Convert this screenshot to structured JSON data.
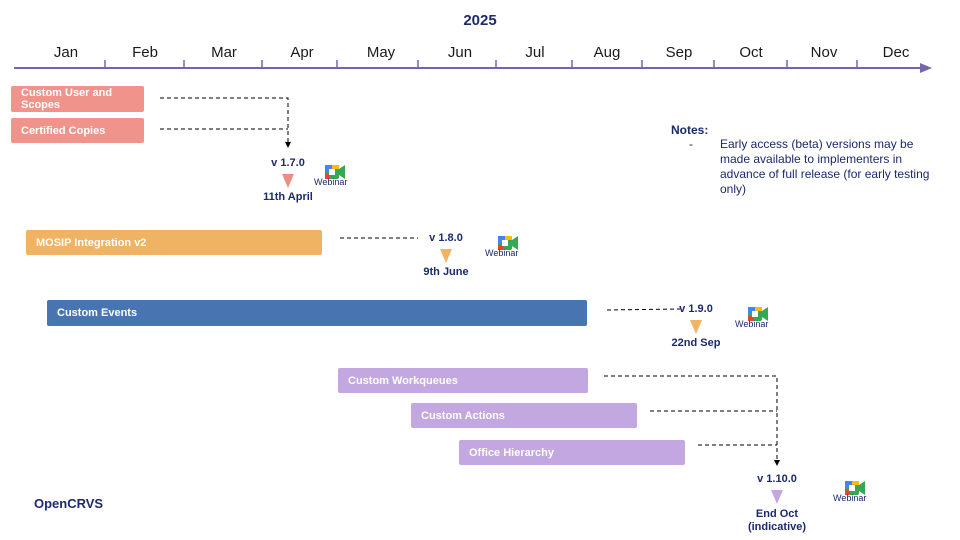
{
  "year": "2025",
  "months": [
    "Jan",
    "Feb",
    "Mar",
    "Apr",
    "May",
    "Jun",
    "Jul",
    "Aug",
    "Sep",
    "Oct",
    "Nov",
    "Dec"
  ],
  "features": {
    "custom_user_scopes": "Custom User and Scopes",
    "certified_copies": "Certified Copies",
    "mosip_integration": "MOSIP Integration v2",
    "custom_events": "Custom Events",
    "custom_workqueues": "Custom Workqueues",
    "custom_actions": "Custom Actions",
    "office_hierarchy": "Office Hierarchy"
  },
  "releases": {
    "r170": {
      "version": "v 1.7.0",
      "date": "11th April",
      "color": "#ec8f82"
    },
    "r180": {
      "version": "v 1.8.0",
      "date": "9th June",
      "color": "#f0b263"
    },
    "r190": {
      "version": "v 1.9.0",
      "date": "22nd Sep",
      "color": "#f0b263"
    },
    "r1100": {
      "version": "v 1.10.0",
      "date_line1": "End Oct",
      "date_line2": "(indicative)",
      "color": "#c3a7e0"
    }
  },
  "webinar_label": "Webinar",
  "notes": {
    "title": "Notes:",
    "bullet": "-",
    "text": "Early access (beta) versions may be made available to implementers in advance of full release (for early testing only)"
  },
  "brand": "OpenCRVS",
  "colors": {
    "salmon": "#f0938a",
    "orange": "#f0b263",
    "blue": "#4874b1",
    "lavender": "#c3a7e0",
    "axis": "#7a63ad",
    "text": "#1a2a6c"
  }
}
